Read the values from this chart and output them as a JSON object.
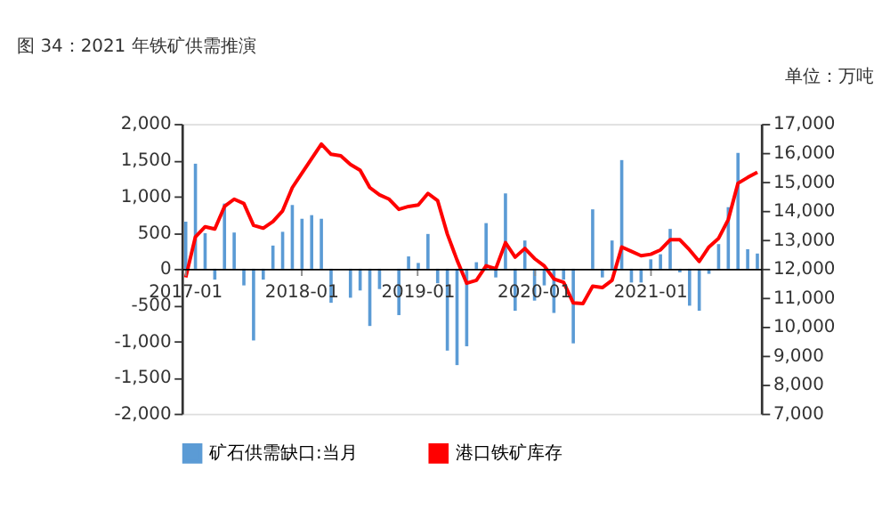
{
  "chart_data": {
    "type": "bar",
    "title": "图 34：2021 年铁矿供需推演",
    "annotations": [
      "单位：万吨"
    ],
    "categories": [
      "2017-01",
      null,
      null,
      null,
      null,
      null,
      null,
      null,
      null,
      null,
      null,
      null,
      "2018-01",
      null,
      null,
      null,
      null,
      null,
      null,
      null,
      null,
      null,
      null,
      null,
      "2019-01",
      null,
      null,
      null,
      null,
      null,
      null,
      null,
      null,
      null,
      null,
      null,
      "2020-01",
      null,
      null,
      null,
      null,
      null,
      null,
      null,
      null,
      null,
      null,
      null,
      "2021-01",
      null,
      null,
      null,
      null,
      null,
      null,
      null,
      null,
      null,
      null,
      null
    ],
    "series": [
      {
        "name": "矿石供需缺口:当月",
        "color": "#5b9bd5",
        "values": [
          650,
          1450,
          490,
          -150,
          900,
          500,
          -230,
          -990,
          -150,
          320,
          510,
          880,
          690,
          740,
          690,
          -470,
          0,
          -400,
          -300,
          -790,
          -280,
          0,
          -640,
          170,
          80,
          480,
          -200,
          -1130,
          -1330,
          -1070,
          90,
          630,
          -120,
          1040,
          -580,
          390,
          -440,
          -230,
          -610,
          -150,
          -1030,
          0,
          820,
          -120,
          390,
          1500,
          -190,
          -190,
          130,
          200,
          550,
          -50,
          -510,
          -580,
          -70,
          340,
          850,
          1600,
          270,
          210
        ]
      },
      {
        "name": "港口铁矿库存",
        "type": "line",
        "axis": "y2",
        "color": "#ff0000",
        "values": [
          11700,
          13100,
          13450,
          13370,
          14150,
          14400,
          14250,
          13500,
          13400,
          13630,
          14000,
          14800,
          15300,
          15800,
          16300,
          15950,
          15900,
          15600,
          15400,
          14800,
          14550,
          14400,
          14050,
          14150,
          14200,
          14600,
          14350,
          13200,
          12300,
          11500,
          11600,
          12100,
          12000,
          12900,
          12400,
          12700,
          12350,
          12100,
          11650,
          11530,
          10820,
          10800,
          11400,
          11350,
          11600,
          12750,
          12600,
          12450,
          12500,
          12650,
          13000,
          13000,
          12650,
          12250,
          12750,
          13050,
          13700,
          14950,
          15150,
          15330
        ]
      }
    ],
    "ylim": [
      -2000,
      2000
    ],
    "yticks": [
      {
        "value": -2000,
        "label": "-2,000"
      },
      {
        "value": -1500,
        "label": "-1,500"
      },
      {
        "value": -1000,
        "label": "-1,000"
      },
      {
        "value": -500,
        "label": "-500"
      },
      0,
      500,
      {
        "value": 1000,
        "label": "1,000"
      },
      {
        "value": 1500,
        "label": "1,500"
      },
      {
        "value": 2000,
        "label": "2,000"
      }
    ],
    "y2lim": [
      7000,
      17000
    ],
    "y2ticks": [
      {
        "value": 7000,
        "label": "7,000"
      },
      {
        "value": 8000,
        "label": "8,000"
      },
      {
        "value": 9000,
        "label": "9,000"
      },
      {
        "value": 10000,
        "label": "10,000"
      },
      {
        "value": 11000,
        "label": "11,000"
      },
      {
        "value": 12000,
        "label": "12,000"
      },
      {
        "value": 13000,
        "label": "13,000"
      },
      {
        "value": 14000,
        "label": "14,000"
      },
      {
        "value": 15000,
        "label": "15,000"
      },
      {
        "value": 16000,
        "label": "16,000"
      },
      {
        "value": 17000,
        "label": "17,000"
      }
    ],
    "grid": false,
    "legend": "bottom"
  }
}
